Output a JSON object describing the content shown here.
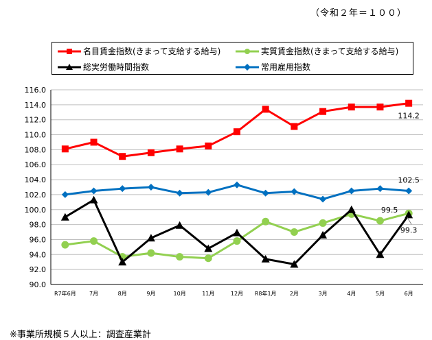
{
  "header": {
    "base_note": "（令和２年＝１００）"
  },
  "footer": {
    "note": "※事業所規模５人以上：調査産業計"
  },
  "chart_data": {
    "type": "line",
    "title": "",
    "xlabel": "",
    "ylabel": "",
    "ylim": [
      90.0,
      116.0
    ],
    "y_ticks": [
      "90.0",
      "92.0",
      "94.0",
      "96.0",
      "98.0",
      "100.0",
      "102.0",
      "104.0",
      "106.0",
      "108.0",
      "110.0",
      "112.0",
      "114.0",
      "116.0"
    ],
    "categories": [
      "R7年6月",
      "7月",
      "8月",
      "9月",
      "10月",
      "11月",
      "12月",
      "R8年1月",
      "2月",
      "3月",
      "4月",
      "5月",
      "6月"
    ],
    "grid": true,
    "legend_position": "top",
    "series": [
      {
        "name": "名目賃金指数(きまって支給する給与)",
        "color": "#ff0000",
        "marker": "square",
        "values": [
          108.1,
          109.0,
          107.1,
          107.6,
          108.1,
          108.5,
          110.4,
          113.4,
          111.1,
          113.1,
          113.7,
          113.7,
          114.2
        ]
      },
      {
        "name": "実質賃金指数(きまって支給する給与)",
        "color": "#92d050",
        "marker": "circle",
        "values": [
          95.3,
          95.8,
          93.7,
          94.2,
          93.7,
          93.5,
          95.8,
          98.4,
          97.0,
          98.2,
          99.4,
          98.5,
          99.5
        ]
      },
      {
        "name": "総実労働時間指数",
        "color": "#000000",
        "marker": "triangle",
        "values": [
          99.0,
          101.3,
          93.0,
          96.2,
          97.9,
          94.8,
          96.9,
          93.4,
          92.7,
          96.6,
          100.0,
          94.0,
          99.3
        ]
      },
      {
        "name": "常用雇用指数",
        "color": "#0070c0",
        "marker": "diamond",
        "values": [
          102.0,
          102.5,
          102.8,
          103.0,
          102.2,
          102.3,
          103.3,
          102.2,
          102.4,
          101.4,
          102.5,
          102.8,
          102.5
        ]
      }
    ],
    "annotations": [
      {
        "series": 0,
        "index": 12,
        "text": "114.2"
      },
      {
        "series": 3,
        "index": 12,
        "text": "102.5"
      },
      {
        "series": 1,
        "index": 12,
        "text": "99.5"
      },
      {
        "series": 2,
        "index": 12,
        "text": "99.3"
      }
    ]
  }
}
